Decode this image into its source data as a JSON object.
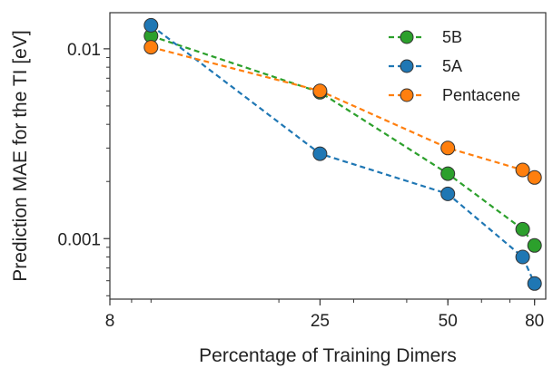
{
  "chart_data": {
    "type": "line",
    "title": "",
    "xlabel": "Percentage of Training Dimers",
    "ylabel": "Prediction MAE for the TI [eV]",
    "xscale": "log",
    "yscale": "log",
    "xlim": [
      8,
      85
    ],
    "ylim": [
      0.00048,
      0.0155
    ],
    "xticks": [
      {
        "value": 8,
        "label": "8"
      },
      {
        "value": 25,
        "label": "25"
      },
      {
        "value": 50,
        "label": "50"
      },
      {
        "value": 80,
        "label": "80"
      }
    ],
    "yticks": [
      {
        "value": 0.001,
        "label": "0.001"
      },
      {
        "value": 0.01,
        "label": "0.01"
      }
    ],
    "legend_position": "top-right",
    "series": [
      {
        "name": "5B",
        "color": "#2ca02c",
        "points": [
          {
            "x": 10,
            "y": 0.0117
          },
          {
            "x": 25,
            "y": 0.0059
          },
          {
            "x": 50,
            "y": 0.0022
          },
          {
            "x": 75,
            "y": 0.00112
          },
          {
            "x": 80,
            "y": 0.00092
          }
        ]
      },
      {
        "name": "5A",
        "color": "#1f77b4",
        "points": [
          {
            "x": 10,
            "y": 0.0133
          },
          {
            "x": 25,
            "y": 0.0028
          },
          {
            "x": 50,
            "y": 0.00172
          },
          {
            "x": 75,
            "y": 0.0008
          },
          {
            "x": 80,
            "y": 0.00058
          }
        ]
      },
      {
        "name": "Pentacene",
        "color": "#ff7f0e",
        "points": [
          {
            "x": 10,
            "y": 0.0102
          },
          {
            "x": 25,
            "y": 0.006
          },
          {
            "x": 50,
            "y": 0.003
          },
          {
            "x": 75,
            "y": 0.0023
          },
          {
            "x": 80,
            "y": 0.0021
          }
        ]
      }
    ]
  }
}
